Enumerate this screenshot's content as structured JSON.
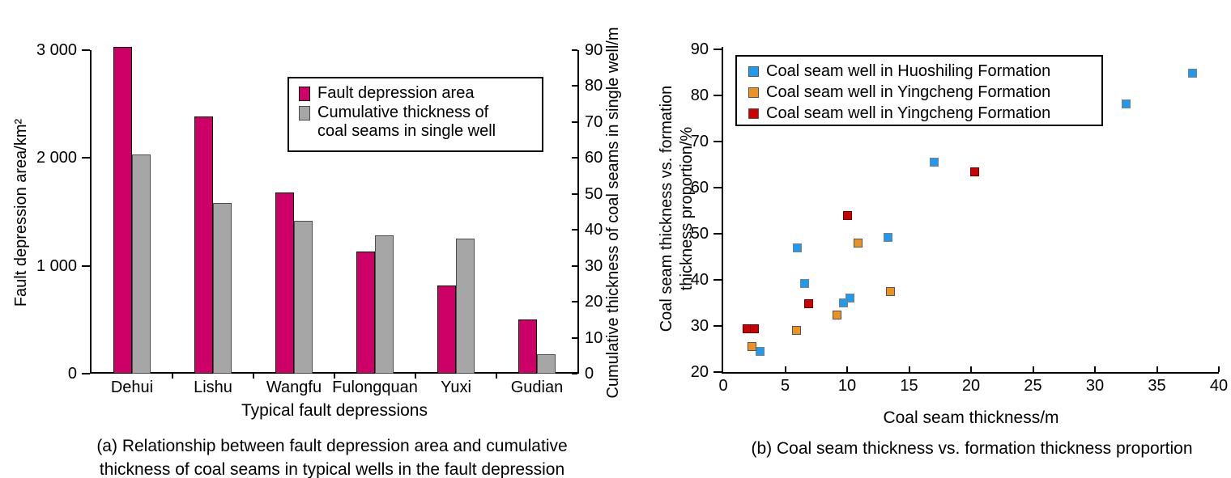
{
  "chart_data": [
    {
      "id": "a",
      "type": "bar",
      "categories": [
        "Dehui",
        "Lishu",
        "Wangfu",
        "Fulongquan",
        "Yuxi",
        "Gudian"
      ],
      "series": [
        {
          "name": "Fault depression area",
          "legend_lines": [
            "Fault depression area"
          ],
          "axis": "left",
          "unit": "km2",
          "color": "#CC0066",
          "border_color": "#000000",
          "values": [
            3030,
            2385,
            1680,
            1130,
            820,
            500
          ]
        },
        {
          "name": "Cumulative thickness of coal seams in single well",
          "legend_lines": [
            "Cumulative thickness of",
            "coal seams in single well"
          ],
          "axis": "right",
          "unit": "m",
          "color": "#A6A6A6",
          "border_color": "#4D4D4D",
          "values": [
            61,
            47.5,
            42.5,
            38.5,
            37.5,
            5.5
          ]
        }
      ],
      "left_axis": {
        "label": "Fault depression area/km²",
        "tick_labels": [
          "0",
          "1 000",
          "2 000",
          "3 000"
        ],
        "tick_values": [
          0,
          1000,
          2000,
          3000
        ],
        "range": [
          0,
          3000
        ]
      },
      "right_axis": {
        "label": "Cumulative thickness of coal seams in single well/m",
        "tick_values": [
          0,
          10,
          20,
          30,
          40,
          50,
          60,
          70,
          80,
          90
        ],
        "range": [
          0,
          90
        ]
      },
      "xlabel": "Typical fault depressions",
      "caption": [
        "(a) Relationship between fault depression area and cumulative",
        "thickness of coal seams in typical wells in the fault depression"
      ],
      "legend_position": "top-right-inside",
      "grid": false
    },
    {
      "id": "b",
      "type": "scatter",
      "series": [
        {
          "name": "Coal seam well in Huoshiling Formation",
          "color": "#1E9BF0",
          "border_color": "#7F7F7F",
          "points": [
            [
              3.0,
              24.5
            ],
            [
              6.0,
              47.0
            ],
            [
              6.6,
              39.2
            ],
            [
              9.7,
              35.0
            ],
            [
              10.2,
              36.0
            ],
            [
              13.3,
              49.2
            ],
            [
              17.0,
              65.5
            ],
            [
              32.5,
              78.2
            ],
            [
              37.9,
              84.8
            ]
          ]
        },
        {
          "name": "Coal seam well in Yingcheng Formation",
          "color": "#EF9020",
          "border_color": "#555555",
          "points": [
            [
              2.3,
              25.5
            ],
            [
              5.9,
              29.0
            ],
            [
              9.2,
              32.3
            ],
            [
              10.9,
              48.0
            ],
            [
              13.5,
              37.5
            ]
          ]
        },
        {
          "name": "Coal seam well in Yingcheng Formation",
          "color": "#CC0000",
          "border_color": "#660000",
          "points": [
            [
              1.9,
              29.3
            ],
            [
              2.5,
              29.3
            ],
            [
              6.9,
              34.8
            ],
            [
              10.0,
              53.9
            ],
            [
              20.3,
              63.5
            ]
          ]
        }
      ],
      "xlabel": "Coal seam thickness/m",
      "ylabel_lines": [
        "Coal seam thickness vs. formation",
        "thickness proportion/%"
      ],
      "x_ticks": [
        0,
        5,
        10,
        15,
        20,
        25,
        30,
        35,
        40
      ],
      "y_ticks": [
        20,
        30,
        40,
        50,
        60,
        70,
        80,
        90
      ],
      "xlim": [
        0,
        40
      ],
      "ylim": [
        20,
        90
      ],
      "caption": "(b) Coal seam thickness vs. formation thickness proportion",
      "legend_position": "top-left-inside",
      "grid": false
    }
  ]
}
